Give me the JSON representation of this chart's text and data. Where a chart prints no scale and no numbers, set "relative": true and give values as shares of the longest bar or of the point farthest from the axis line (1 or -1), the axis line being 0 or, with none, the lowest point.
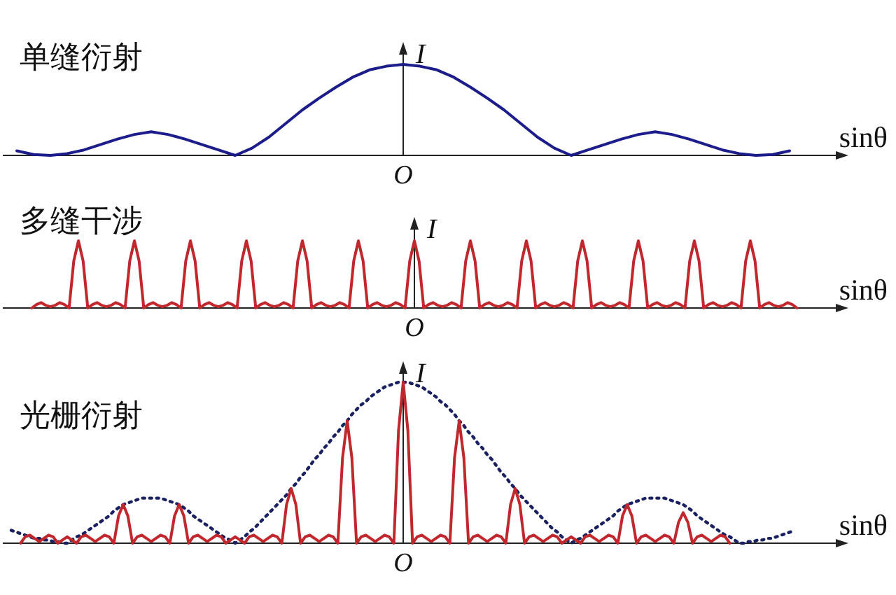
{
  "chart_data": [
    {
      "type": "line",
      "title": "单缝衍射",
      "xlabel": "sinθ",
      "ylabel": "I",
      "annotations": [
        "O"
      ],
      "relative": true,
      "categories": [
        null,
        null,
        null,
        null,
        null,
        null,
        null,
        null,
        null,
        null,
        null,
        null,
        null,
        null,
        null,
        null,
        null,
        null,
        null,
        null,
        null,
        null,
        null,
        null,
        null,
        null,
        null,
        null,
        null,
        null,
        null,
        null,
        null,
        null,
        null,
        null,
        null,
        null,
        null,
        null,
        null,
        null,
        null,
        null,
        null,
        null,
        null
      ],
      "series": [
        {
          "color": "#1c1c8a",
          "values": [
            0.05,
            0.01,
            0,
            0.02,
            0.06,
            0.12,
            0.18,
            0.23,
            0.26,
            0.23,
            0.18,
            0.12,
            0.06,
            0,
            0.08,
            0.2,
            0.35,
            0.5,
            0.63,
            0.75,
            0.86,
            0.94,
            0.98,
            1,
            0.98,
            0.94,
            0.86,
            0.75,
            0.63,
            0.5,
            0.35,
            0.2,
            0.08,
            0,
            0.06,
            0.12,
            0.18,
            0.23,
            0.26,
            0.23,
            0.18,
            0.12,
            0.06,
            0.02,
            0,
            0.01,
            0.05
          ]
        }
      ]
    },
    {
      "type": "line",
      "title": "多缝干涉",
      "xlabel": "sinθ",
      "ylabel": "I",
      "annotations": [
        "O"
      ],
      "relative": true,
      "categories": [
        null,
        null,
        null,
        null,
        null,
        null,
        null,
        null,
        null,
        null,
        null,
        null,
        null,
        null,
        null,
        null,
        null,
        null,
        null,
        null,
        null,
        null,
        null,
        null,
        null,
        null,
        null,
        null,
        null,
        null,
        null,
        null,
        null,
        null,
        null,
        null,
        null,
        null,
        null,
        null,
        null,
        null,
        null,
        null,
        null,
        null,
        null,
        null,
        null,
        null,
        null,
        null,
        null,
        null,
        null,
        null,
        null,
        null,
        null,
        null,
        null,
        null,
        null,
        null,
        null,
        null,
        null,
        null,
        null,
        null,
        null,
        null,
        null,
        null,
        null,
        null,
        null,
        null,
        null,
        null,
        null,
        null,
        null,
        null,
        null,
        null,
        null,
        null,
        null,
        null,
        null,
        null,
        null,
        null,
        null,
        null,
        null,
        null,
        null,
        null,
        null,
        null,
        null,
        null,
        null,
        null,
        null,
        null,
        null,
        null,
        null,
        null,
        null,
        null,
        null,
        null,
        null,
        null,
        null,
        null,
        null,
        null,
        null,
        null,
        null,
        null,
        null,
        null,
        null,
        null,
        null,
        null,
        null,
        null,
        null,
        null,
        null,
        null,
        null,
        null,
        null,
        null,
        null,
        null,
        null,
        null,
        null,
        null,
        null,
        null,
        null,
        null,
        null,
        null,
        null,
        null,
        null,
        null,
        null,
        null,
        null,
        null,
        null,
        null,
        null
      ],
      "series": [
        {
          "color": "#c0282d",
          "values": [
            0,
            0.05,
            0.08,
            0.04,
            0.02,
            0.04,
            0.08,
            0.05,
            0,
            0.7,
            1,
            0.7,
            0,
            0.05,
            0.08,
            0.04,
            0.02,
            0.04,
            0.08,
            0.05,
            0,
            0.7,
            1,
            0.7,
            0,
            0.05,
            0.08,
            0.04,
            0.02,
            0.04,
            0.08,
            0.05,
            0,
            0.7,
            1,
            0.7,
            0,
            0.05,
            0.08,
            0.04,
            0.02,
            0.04,
            0.08,
            0.05,
            0,
            0.7,
            1,
            0.7,
            0,
            0.05,
            0.08,
            0.04,
            0.02,
            0.04,
            0.08,
            0.05,
            0,
            0.7,
            1,
            0.7,
            0,
            0.05,
            0.08,
            0.04,
            0.02,
            0.04,
            0.08,
            0.05,
            0,
            0.7,
            1,
            0.7,
            0,
            0.05,
            0.08,
            0.04,
            0.02,
            0.04,
            0.08,
            0.05,
            0,
            0.7,
            1,
            0.7,
            0,
            0.05,
            0.08,
            0.04,
            0.02,
            0.04,
            0.08,
            0.05,
            0,
            0.7,
            1,
            0.7,
            0,
            0.05,
            0.08,
            0.04,
            0.02,
            0.04,
            0.08,
            0.05,
            0,
            0.7,
            1,
            0.7,
            0,
            0.05,
            0.08,
            0.04,
            0.02,
            0.04,
            0.08,
            0.05,
            0,
            0.7,
            1,
            0.7,
            0,
            0.05,
            0.08,
            0.04,
            0.02,
            0.04,
            0.08,
            0.05,
            0,
            0.7,
            1,
            0.7,
            0,
            0.05,
            0.08,
            0.04,
            0.02,
            0.04,
            0.08,
            0.05,
            0,
            0.7,
            1,
            0.7,
            0,
            0.05,
            0.08,
            0.04,
            0.02,
            0.04,
            0.08,
            0.05,
            0,
            0.7,
            1,
            0.7,
            0,
            0.05,
            0.08,
            0.04,
            0.02,
            0.04,
            0.08,
            0.05,
            0
          ]
        }
      ]
    },
    {
      "type": "line",
      "title": "光栅衍射",
      "xlabel": "sinθ",
      "ylabel": "I",
      "annotations": [
        "O"
      ],
      "relative": true,
      "categories": [
        null,
        null,
        null,
        null,
        null,
        null,
        null,
        null,
        null,
        null,
        null,
        null,
        null,
        null,
        null,
        null,
        null,
        null,
        null,
        null,
        null,
        null,
        null,
        null,
        null,
        null,
        null,
        null,
        null,
        null,
        null,
        null,
        null,
        null,
        null,
        null,
        null,
        null,
        null,
        null,
        null,
        null,
        null,
        null,
        null,
        null,
        null,
        null,
        null,
        null,
        null,
        null,
        null,
        null,
        null,
        null,
        null,
        null,
        null,
        null,
        null,
        null,
        null,
        null,
        null,
        null,
        null,
        null,
        null,
        null,
        null,
        null,
        null,
        null,
        null,
        null,
        null,
        null,
        null,
        null,
        null,
        null,
        null,
        null,
        null,
        null,
        null,
        null,
        null,
        null,
        null,
        null,
        null,
        null,
        null,
        null,
        null,
        null,
        null,
        null,
        null,
        null,
        null,
        null,
        null,
        null,
        null,
        null,
        null,
        null,
        null,
        null,
        null,
        null,
        null,
        null,
        null,
        null,
        null,
        null,
        null,
        null,
        null,
        null,
        null,
        null,
        null,
        null,
        null,
        null,
        null,
        null,
        null,
        null,
        null,
        null,
        null,
        null,
        null,
        null,
        null,
        null,
        null,
        null,
        null,
        null,
        null,
        null,
        null,
        null,
        null,
        null,
        null,
        null,
        null,
        null,
        null,
        null,
        null,
        null,
        null,
        null,
        null,
        null,
        null,
        null,
        null,
        null,
        null
      ],
      "series": [
        {
          "color": "#1a2060",
          "line_style": "dotted",
          "values": [
            0.08,
            0.07,
            0.06,
            0.05,
            0.04,
            0.03,
            0.03,
            0.02,
            0.02,
            0.01,
            0.01,
            0,
            0,
            0.02,
            0.04,
            0.05,
            0.07,
            0.09,
            0.11,
            0.13,
            0.15,
            0.17,
            0.2,
            0.22,
            0.24,
            0.25,
            0.26,
            0.27,
            0.28,
            0.28,
            0.28,
            0.28,
            0.28,
            0.27,
            0.26,
            0.25,
            0.24,
            0.22,
            0.2,
            0.17,
            0.15,
            0.13,
            0.11,
            0.09,
            0.07,
            0.05,
            0.03,
            0.02,
            0,
            0.02,
            0.04,
            0.07,
            0.09,
            0.12,
            0.15,
            0.18,
            0.21,
            0.24,
            0.27,
            0.3,
            0.34,
            0.37,
            0.41,
            0.44,
            0.48,
            0.52,
            0.55,
            0.59,
            0.62,
            0.66,
            0.69,
            0.73,
            0.76,
            0.8,
            0.83,
            0.86,
            0.88,
            0.91,
            0.93,
            0.95,
            0.97,
            0.98,
            0.99,
            1,
            1,
            1,
            0.99,
            0.98,
            0.97,
            0.95,
            0.93,
            0.91,
            0.88,
            0.86,
            0.83,
            0.8,
            0.76,
            0.73,
            0.69,
            0.66,
            0.62,
            0.59,
            0.55,
            0.52,
            0.48,
            0.44,
            0.41,
            0.37,
            0.34,
            0.3,
            0.27,
            0.24,
            0.21,
            0.18,
            0.15,
            0.12,
            0.09,
            0.07,
            0.04,
            0.02,
            0,
            0.02,
            0.03,
            0.05,
            0.07,
            0.09,
            0.11,
            0.13,
            0.15,
            0.17,
            0.2,
            0.22,
            0.24,
            0.25,
            0.26,
            0.27,
            0.28,
            0.28,
            0.28,
            0.28,
            0.28,
            0.27,
            0.26,
            0.25,
            0.24,
            0.22,
            0.2,
            0.17,
            0.15,
            0.13,
            0.11,
            0.09,
            0.07,
            0.05,
            0.04,
            0.02,
            0,
            0,
            0.01,
            0.01,
            0.02,
            0.02,
            0.03,
            0.03,
            0.04,
            0.05,
            0.06,
            0.07,
            0.08
          ]
        },
        {
          "color": "#c0282d",
          "values": [
            null,
            null,
            0,
            0.04,
            0.05,
            0.03,
            0.01,
            0.03,
            0.05,
            0.04,
            0,
            0.02,
            0.04,
            0.02,
            0,
            0.04,
            0.05,
            0.03,
            0.01,
            0.03,
            0.05,
            0.04,
            0,
            0.17,
            0.24,
            0.17,
            0,
            0.04,
            0.05,
            0.03,
            0.01,
            0.03,
            0.05,
            0.04,
            0,
            0.17,
            0.24,
            0.17,
            0,
            0.04,
            0.05,
            0.03,
            0.01,
            0.03,
            0.05,
            0.04,
            0,
            0.02,
            0.04,
            0.02,
            0,
            0.04,
            0.05,
            0.03,
            0.01,
            0.03,
            0.05,
            0.04,
            0,
            0.24,
            0.34,
            0.24,
            0,
            0.04,
            0.05,
            0.03,
            0.01,
            0.03,
            0.05,
            0.04,
            0,
            0.53,
            0.76,
            0.53,
            0,
            0.04,
            0.05,
            0.03,
            0.01,
            0.03,
            0.05,
            0.04,
            0,
            0.7,
            1,
            0.7,
            0,
            0.04,
            0.05,
            0.03,
            0.01,
            0.03,
            0.05,
            0.04,
            0,
            0.53,
            0.76,
            0.53,
            0,
            0.04,
            0.05,
            0.03,
            0.01,
            0.03,
            0.05,
            0.04,
            0,
            0.24,
            0.34,
            0.24,
            0,
            0.04,
            0.05,
            0.03,
            0.01,
            0.03,
            0.05,
            0.04,
            0,
            0.02,
            0.04,
            0.02,
            0,
            0.04,
            0.05,
            0.03,
            0.01,
            0.03,
            0.05,
            0.04,
            0,
            0.17,
            0.24,
            0.17,
            0,
            0.04,
            0.05,
            0.03,
            0.01,
            0.03,
            0.05,
            0.04,
            0,
            0.13,
            0.19,
            0.13,
            0,
            0.04,
            0.05,
            0.03,
            0.01,
            0.03,
            0.05,
            0.04,
            0,
            null,
            null,
            null,
            null,
            null,
            null,
            null,
            null,
            null,
            null,
            null,
            null,
            null,
            null
          ]
        }
      ]
    }
  ]
}
